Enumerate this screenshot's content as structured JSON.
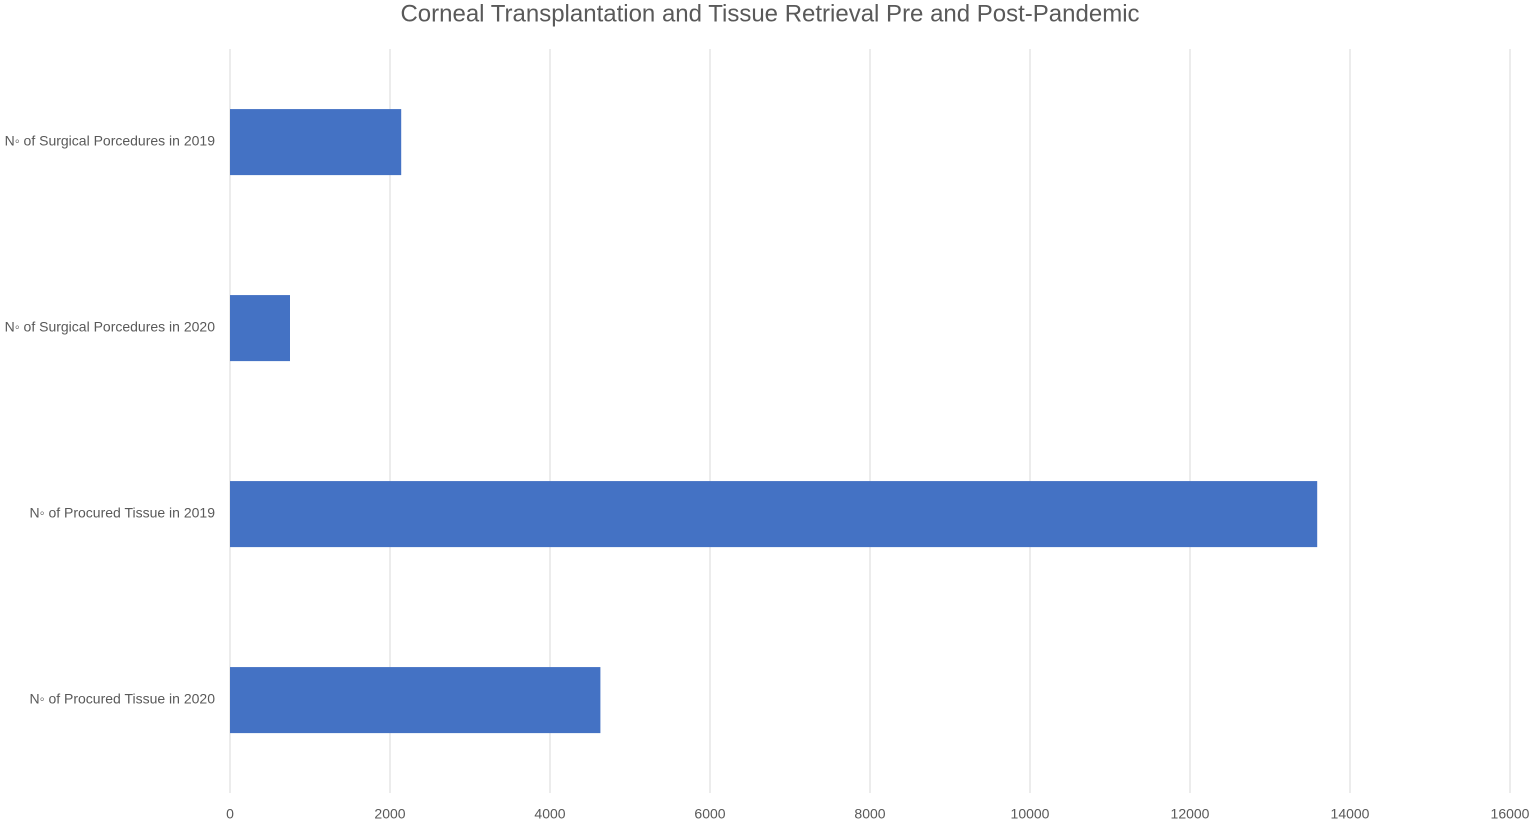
{
  "chart_data": {
    "type": "hbar",
    "title": "Corneal Transplantation and Tissue Retrieval Pre and Post-Pandemic",
    "categories": [
      "N◦ of Surgical Porcedures in 2019",
      "N◦ of Surgical Porcedures in 2020",
      "N◦ of Procured Tissue in 2019",
      "N◦ of Procured Tissue in 2020"
    ],
    "values": [
      2140,
      750,
      13590,
      4630
    ],
    "color": "#4472c4",
    "xlim": [
      0,
      16000
    ],
    "xticks": [
      0,
      2000,
      4000,
      6000,
      8000,
      10000,
      12000,
      14000,
      16000
    ],
    "grid": true
  }
}
